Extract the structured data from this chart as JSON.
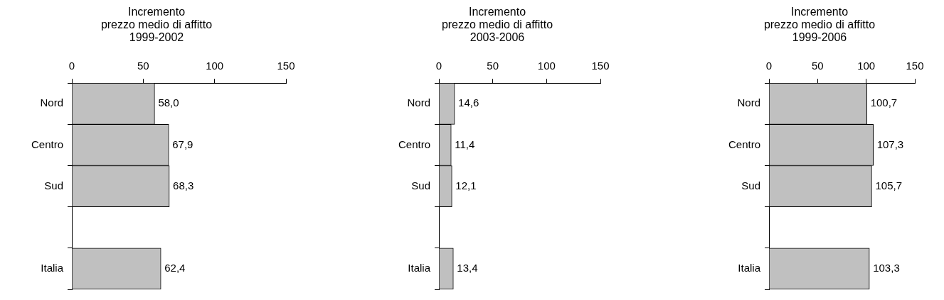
{
  "chart_data": [
    {
      "type": "bar",
      "orientation": "horizontal",
      "title": "Incremento\nprezzo medio di affitto\n1999-2002",
      "categories": [
        "Nord",
        "Centro",
        "Sud",
        null,
        "Italia"
      ],
      "values": [
        58.0,
        67.9,
        68.3,
        null,
        62.4
      ],
      "value_labels": [
        "58,0",
        "67,9",
        "68,3",
        null,
        "62,4"
      ],
      "color": "#c0c0c0",
      "xlim": [
        0,
        150
      ],
      "xticks": [
        0,
        50,
        100,
        150
      ],
      "grid": false,
      "legend": false
    },
    {
      "type": "bar",
      "orientation": "horizontal",
      "title": "Incremento\nprezzo medio di affitto\n2003-2006",
      "categories": [
        "Nord",
        "Centro",
        "Sud",
        null,
        "Italia"
      ],
      "values": [
        14.6,
        11.4,
        12.1,
        null,
        13.4
      ],
      "value_labels": [
        "14,6",
        "11,4",
        "12,1",
        null,
        "13,4"
      ],
      "color": "#c0c0c0",
      "xlim": [
        0,
        150
      ],
      "xticks": [
        0,
        50,
        100,
        150
      ],
      "grid": false,
      "legend": false
    },
    {
      "type": "bar",
      "orientation": "horizontal",
      "title": "Incremento\nprezzo medio di affitto\n1999-2006",
      "categories": [
        "Nord",
        "Centro",
        "Sud",
        null,
        "Italia"
      ],
      "values": [
        100.7,
        107.3,
        105.7,
        null,
        103.3
      ],
      "value_labels": [
        "100,7",
        "107,3",
        "105,7",
        null,
        "103,3"
      ],
      "color": "#c0c0c0",
      "xlim": [
        0,
        150
      ],
      "xticks": [
        0,
        50,
        100,
        150
      ],
      "grid": false,
      "legend": false
    }
  ]
}
